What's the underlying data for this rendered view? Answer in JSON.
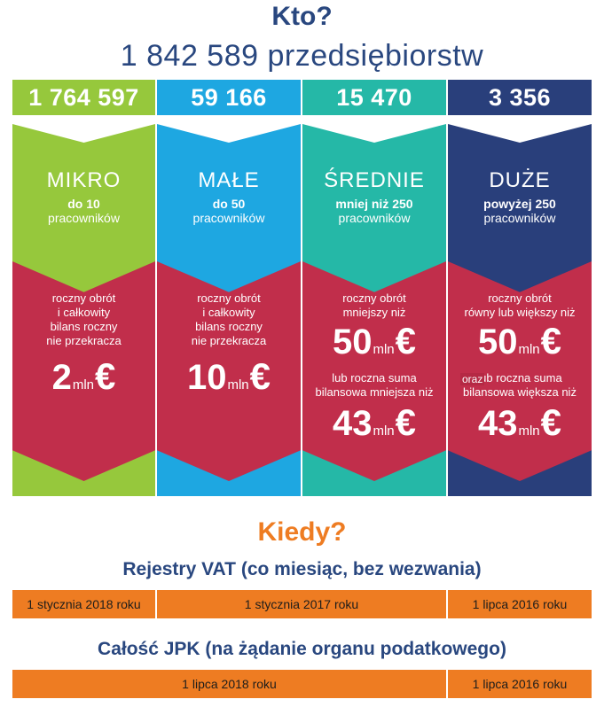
{
  "header": {
    "title": "Kto?",
    "subtitle": "1 842 589 przedsiębiorstw"
  },
  "colors": {
    "mikro": "#96c83c",
    "male": "#1ea7e1",
    "srednie": "#25b8a7",
    "duze": "#293f7b",
    "criteria_band": "#c12e4b",
    "accent_orange": "#ee7c22",
    "navy_text": "#29477f"
  },
  "columns": [
    {
      "count": "1 764 597",
      "name": "MIKRO",
      "size_line1": "do 10",
      "size_line2": "pracowników",
      "criteria_lines": [
        "roczny obrót",
        "i całkowity",
        "bilans roczny",
        "nie przekracza"
      ],
      "amount": "2",
      "unit": "mln",
      "currency": "€"
    },
    {
      "count": "59 166",
      "name": "MAŁE",
      "size_line1": "do 50",
      "size_line2": "pracowników",
      "criteria_lines": [
        "roczny obrót",
        "i całkowity",
        "bilans roczny",
        "nie przekracza"
      ],
      "amount": "10",
      "unit": "mln",
      "currency": "€"
    },
    {
      "count": "15 470",
      "name": "ŚREDNIE",
      "size_line1": "mniej niż 250",
      "size_line2": "pracowników",
      "criteria_lines": [
        "roczny obrót",
        "mniejszy niż"
      ],
      "amount": "50",
      "unit": "mln",
      "currency": "€",
      "criteria2_lines": [
        "lub roczna suma",
        "bilansowa mniejsza niż"
      ],
      "amount2": "43",
      "unit2": "mln",
      "currency2": "€"
    },
    {
      "count": "3 356",
      "name": "DUŻE",
      "size_line1": "powyżej 250",
      "size_line2": "pracowników",
      "criteria_lines": [
        "roczny obrót",
        "równy lub większy niż"
      ],
      "amount": "50",
      "unit": "mln",
      "currency": "€",
      "criteria2_lines": [
        "lub roczna suma",
        "bilansowa większa niż"
      ],
      "amount2": "43",
      "unit2": "mln",
      "currency2": "€",
      "overlay_label": "oraz"
    }
  ],
  "kiedy": {
    "title": "Kiedy?",
    "vat": {
      "title": "Rejestry VAT (co miesiąc, bez wezwania)",
      "cells": [
        "1 stycznia 2018 roku",
        "1 stycznia 2017 roku",
        "1 lipca 2016 roku"
      ]
    },
    "jpk": {
      "title": "Całość JPK (na żądanie organu podatkowego)",
      "cells": [
        "1 lipca 2018 roku",
        "1 lipca 2016 roku"
      ]
    }
  }
}
